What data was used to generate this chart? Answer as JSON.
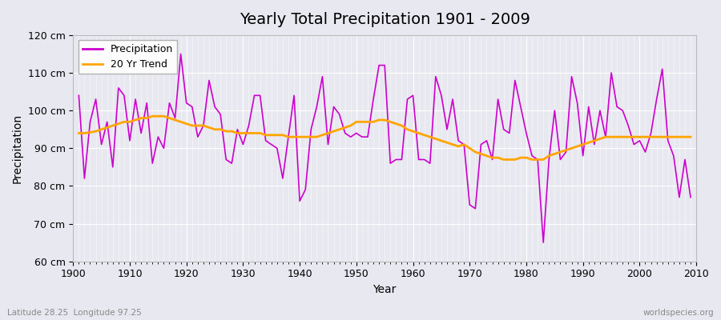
{
  "title": "Yearly Total Precipitation 1901 - 2009",
  "xlabel": "Year",
  "ylabel": "Precipitation",
  "bg_color": "#e8e8f0",
  "plot_bg_color": "#e8e8f0",
  "precip_color": "#cc00cc",
  "trend_color": "#ffa500",
  "precip_linewidth": 1.2,
  "trend_linewidth": 2.0,
  "ylim": [
    60,
    120
  ],
  "yticks": [
    60,
    70,
    80,
    90,
    100,
    110,
    120
  ],
  "years": [
    1901,
    1902,
    1903,
    1904,
    1905,
    1906,
    1907,
    1908,
    1909,
    1910,
    1911,
    1912,
    1913,
    1914,
    1915,
    1916,
    1917,
    1918,
    1919,
    1920,
    1921,
    1922,
    1923,
    1924,
    1925,
    1926,
    1927,
    1928,
    1929,
    1930,
    1931,
    1932,
    1933,
    1934,
    1935,
    1936,
    1937,
    1938,
    1939,
    1940,
    1941,
    1942,
    1943,
    1944,
    1945,
    1946,
    1947,
    1948,
    1949,
    1950,
    1951,
    1952,
    1953,
    1954,
    1955,
    1956,
    1957,
    1958,
    1959,
    1960,
    1961,
    1962,
    1963,
    1964,
    1965,
    1966,
    1967,
    1968,
    1969,
    1970,
    1971,
    1972,
    1973,
    1974,
    1975,
    1976,
    1977,
    1978,
    1979,
    1980,
    1981,
    1982,
    1983,
    1984,
    1985,
    1986,
    1987,
    1988,
    1989,
    1990,
    1991,
    1992,
    1993,
    1994,
    1995,
    1996,
    1997,
    1998,
    1999,
    2000,
    2001,
    2002,
    2003,
    2004,
    2005,
    2006,
    2007,
    2008,
    2009
  ],
  "precip": [
    104,
    82,
    97,
    103,
    91,
    97,
    85,
    106,
    104,
    92,
    103,
    94,
    102,
    86,
    93,
    90,
    102,
    98,
    115,
    102,
    101,
    93,
    96,
    108,
    101,
    99,
    87,
    86,
    95,
    91,
    96,
    104,
    104,
    92,
    91,
    90,
    82,
    93,
    104,
    76,
    79,
    95,
    101,
    109,
    91,
    101,
    99,
    94,
    93,
    94,
    93,
    93,
    103,
    112,
    112,
    86,
    87,
    87,
    103,
    104,
    87,
    87,
    86,
    109,
    104,
    95,
    103,
    92,
    91,
    75,
    74,
    91,
    92,
    87,
    103,
    95,
    94,
    108,
    101,
    94,
    88,
    87,
    65,
    87,
    100,
    87,
    89,
    109,
    102,
    88,
    101,
    91,
    100,
    93,
    110,
    101,
    100,
    96,
    91,
    92,
    89,
    94,
    103,
    111,
    92,
    88,
    77,
    87,
    77
  ],
  "trend": [
    94.0,
    94.0,
    94.2,
    94.5,
    95.0,
    95.5,
    96.0,
    96.5,
    97.0,
    97.0,
    97.5,
    98.0,
    98.0,
    98.5,
    98.5,
    98.5,
    98.0,
    97.5,
    97.0,
    96.5,
    96.0,
    96.0,
    96.0,
    95.5,
    95.0,
    95.0,
    94.5,
    94.5,
    94.0,
    94.0,
    94.0,
    94.0,
    94.0,
    93.5,
    93.5,
    93.5,
    93.5,
    93.0,
    93.0,
    93.0,
    93.0,
    93.0,
    93.0,
    93.5,
    94.0,
    94.5,
    95.0,
    95.5,
    96.0,
    97.0,
    97.0,
    97.0,
    97.0,
    97.5,
    97.5,
    97.0,
    96.5,
    96.0,
    95.0,
    94.5,
    94.0,
    93.5,
    93.0,
    92.5,
    92.0,
    91.5,
    91.0,
    90.5,
    91.0,
    90.0,
    89.0,
    88.5,
    88.0,
    87.5,
    87.5,
    87.0,
    87.0,
    87.0,
    87.5,
    87.5,
    87.0,
    87.0,
    87.0,
    88.0,
    88.5,
    89.0,
    89.5,
    90.0,
    90.5,
    91.0,
    91.5,
    92.0,
    92.5,
    93.0,
    93.0,
    93.0,
    93.0,
    93.0,
    93.0,
    93.0,
    93.0,
    93.0,
    93.0,
    93.0,
    93.0,
    93.0,
    93.0,
    93.0,
    93.0
  ],
  "legend_precip": "Precipitation",
  "legend_trend": "20 Yr Trend",
  "lat_lon_text": "Latitude 28.25  Longitude 97.25",
  "source_text": "worldspecies.org"
}
